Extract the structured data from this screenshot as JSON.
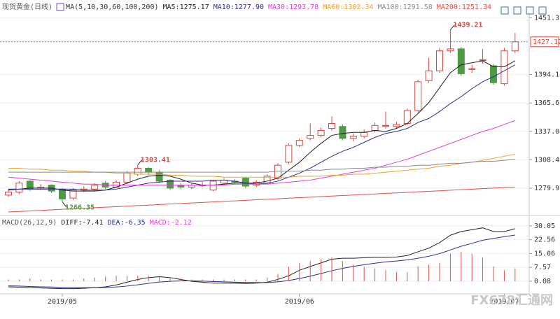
{
  "chart_data": [
    {
      "type": "candlestick",
      "title": "现货黄金(日线)",
      "indicator": "MA(5,10,30,60,100,200)",
      "categories": [
        null,
        null,
        null,
        null,
        null,
        "2019/05",
        null,
        null,
        null,
        null,
        null,
        null,
        null,
        null,
        null,
        null,
        null,
        null,
        null,
        null,
        null,
        null,
        null,
        null,
        null,
        null,
        null,
        "2019/06",
        null,
        null,
        null,
        null,
        null,
        null,
        null,
        null,
        null,
        null,
        null,
        null,
        null,
        null,
        null,
        null,
        null,
        null,
        "2019/07",
        null
      ],
      "open": [
        1273,
        1276,
        1287,
        1280,
        1283,
        1279,
        1270,
        1278,
        1279,
        1285,
        1281,
        1286,
        1294,
        1300,
        1296,
        1288,
        1283,
        1281,
        1283,
        1278,
        1285,
        1287,
        1290,
        1283,
        1285,
        1290,
        1306,
        1323,
        1330,
        1333,
        1340,
        1342,
        1330,
        1332,
        1338,
        1343,
        1342,
        1345,
        1358,
        1388,
        1398,
        1418,
        1420,
        1400,
        1409,
        1403,
        1385,
        1418
      ],
      "high": [
        1279,
        1287,
        1288,
        1284,
        1284,
        1280,
        1280,
        1282,
        1285,
        1287,
        1288,
        1297,
        1303.41,
        1301,
        1298,
        1289,
        1285,
        1285,
        1286,
        1288,
        1290,
        1289,
        1291,
        1288,
        1294,
        1305,
        1325,
        1330,
        1345,
        1341,
        1352,
        1344,
        1335,
        1339,
        1346,
        1357,
        1347,
        1360,
        1389,
        1411,
        1421,
        1439.21,
        1422,
        1404,
        1420,
        1405,
        1421,
        1436
      ],
      "low": [
        1271,
        1274,
        1277,
        1278,
        1275,
        1266.35,
        1268,
        1276,
        1277,
        1279,
        1280,
        1284,
        1292,
        1293,
        1285,
        1278,
        1279,
        1279,
        1281,
        1277,
        1284,
        1284,
        1280,
        1281,
        1284,
        1288,
        1304,
        1321,
        1328,
        1331,
        1338,
        1328,
        1327,
        1330,
        1336,
        1340,
        1340,
        1343,
        1356,
        1386,
        1396,
        1416,
        1393,
        1396,
        1405,
        1384,
        1383,
        1416
      ],
      "close": [
        1276,
        1285,
        1279,
        1281,
        1277,
        1269,
        1278,
        1279,
        1283,
        1281,
        1286,
        1295,
        1300,
        1296,
        1287,
        1280,
        1281,
        1283,
        1283,
        1287,
        1288,
        1286,
        1282,
        1286,
        1292,
        1303,
        1323,
        1328,
        1333,
        1338,
        1345,
        1330,
        1332,
        1336,
        1343,
        1343,
        1344,
        1358,
        1387,
        1398,
        1418,
        1420,
        1395,
        1400,
        1409,
        1386,
        1418,
        1427.12
      ],
      "up_color": "#d9453f",
      "down_color": "#4f9a44",
      "ylim": [
        1254.6,
        1456.5
      ],
      "yticks": [
        1279.91,
        1308.48,
        1337.04,
        1365.61,
        1394.18,
        1451.31
      ],
      "grid": true,
      "last_price": 1427.12,
      "last_price_color": "#3b8fd8",
      "annotations": [
        1439.21,
        1303.41,
        1266.35
      ],
      "watermark": "FX678汇通网",
      "series": [
        {
          "name": "MA5:1275.17",
          "color": "#222222",
          "values": [
            1278,
            1279,
            1280,
            1280,
            1280,
            1278,
            1277,
            1277,
            1277,
            1278,
            1281,
            1285,
            1289,
            1292,
            1293,
            1292,
            1289,
            1285,
            1283,
            1283,
            1284,
            1285,
            1285,
            1285,
            1287,
            1290,
            1298,
            1306,
            1316,
            1325,
            1333,
            1335,
            1336,
            1336,
            1338,
            1337,
            1340,
            1345,
            1355,
            1366,
            1381,
            1396,
            1404,
            1406,
            1408,
            1402,
            1402,
            1408
          ]
        },
        {
          "name": "MA10:1277.90",
          "color": "#2b2f8f",
          "values": [
            1279,
            1279,
            1279,
            1279,
            1279,
            1279,
            1279,
            1278,
            1278,
            1278,
            1279,
            1281,
            1283,
            1285,
            1286,
            1287,
            1287,
            1287,
            1287,
            1288,
            1288,
            1287,
            1285,
            1284,
            1285,
            1287,
            1291,
            1295,
            1300,
            1306,
            1312,
            1317,
            1321,
            1326,
            1331,
            1335,
            1337,
            1340,
            1346,
            1350,
            1357,
            1365,
            1372,
            1380,
            1387,
            1392,
            1398,
            1404
          ]
        },
        {
          "name": "MA30:1293.78",
          "color": "#e040d8",
          "values": [
            1291,
            1290,
            1289,
            1288,
            1287,
            1286,
            1285,
            1284,
            1284,
            1283,
            1283,
            1283,
            1283,
            1283,
            1283,
            1283,
            1283,
            1283,
            1283,
            1283,
            1283,
            1284,
            1284,
            1284,
            1284,
            1285,
            1286,
            1287,
            1288,
            1290,
            1292,
            1294,
            1296,
            1298,
            1300,
            1303,
            1306,
            1309,
            1313,
            1317,
            1321,
            1325,
            1329,
            1333,
            1337,
            1340,
            1344,
            1348
          ]
        },
        {
          "name": "MA60:1302.34",
          "color": "#f0a030",
          "values": [
            1300,
            1300,
            1299,
            1299,
            1298,
            1298,
            1297,
            1297,
            1296,
            1296,
            1295,
            1295,
            1294,
            1294,
            1294,
            1293,
            1293,
            1292,
            1292,
            1292,
            1291,
            1291,
            1291,
            1291,
            1291,
            1291,
            1291,
            1292,
            1292,
            1292,
            1293,
            1293,
            1294,
            1294,
            1295,
            1296,
            1297,
            1298,
            1299,
            1300,
            1302,
            1303,
            1305,
            1306,
            1308,
            1310,
            1312,
            1314
          ]
        },
        {
          "name": "MA100:1291.58",
          "color": "#8a8a8a",
          "values": [
            1296,
            1296,
            1296,
            1296,
            1296,
            1296,
            1296,
            1296,
            1296,
            1296,
            1296,
            1296,
            1296,
            1296,
            1296,
            1296,
            1296,
            1296,
            1296,
            1296,
            1296,
            1296,
            1296,
            1296,
            1296,
            1297,
            1297,
            1297,
            1298,
            1298,
            1299,
            1299,
            1300,
            1300,
            1301,
            1301,
            1302,
            1302,
            1303,
            1303,
            1304,
            1305,
            1305,
            1306,
            1307,
            1307,
            1308,
            1309
          ]
        },
        {
          "name": "MA200:1251.34",
          "color": "#e0504a",
          "values": [
            1256,
            1256.5,
            1257,
            1257.6,
            1258.1,
            1258.7,
            1259.2,
            1259.7,
            1260.3,
            1260.8,
            1261.3,
            1261.9,
            1262.4,
            1262.9,
            1263.5,
            1264,
            1264.5,
            1265.1,
            1265.6,
            1266.1,
            1266.7,
            1267.2,
            1267.7,
            1268.3,
            1268.8,
            1269.3,
            1269.9,
            1270.4,
            1270.9,
            1271.5,
            1272,
            1272.5,
            1273.1,
            1273.6,
            1274.1,
            1274.7,
            1275.2,
            1275.7,
            1276.3,
            1276.8,
            1277.3,
            1277.9,
            1278.4,
            1278.9,
            1279.5,
            1280,
            1280.5,
            1281.1
          ]
        }
      ]
    },
    {
      "type": "macd",
      "title": "MACD(26,12,9)",
      "ylim": [
        -6.8,
        34.2
      ],
      "yticks": [
        0.08,
        7.57,
        15.06,
        22.56,
        30.05
      ],
      "bar_color": "#e0504a",
      "series": [
        {
          "name": "DIFF:-7.41",
          "color": "#222222",
          "values": [
            -3,
            -3.2,
            -3.5,
            -3.6,
            -3.8,
            -4,
            -4,
            -3.8,
            -3.5,
            -3,
            -2,
            -0.5,
            1,
            2,
            2.5,
            2,
            1,
            0,
            -0.5,
            -1,
            -1,
            -1,
            -1.2,
            -1,
            -0.5,
            1,
            3,
            6,
            8,
            10,
            12,
            12.5,
            12.5,
            12.8,
            13,
            13,
            13.2,
            14,
            16,
            18,
            21,
            25,
            27,
            28,
            29,
            27,
            27,
            28.5
          ]
        },
        {
          "name": "DEA:-6.35",
          "color": "#2b2f8f",
          "values": [
            -2.5,
            -2.6,
            -2.8,
            -3,
            -3.1,
            -3.3,
            -3.4,
            -3.5,
            -3.5,
            -3.4,
            -3.1,
            -2.6,
            -1.9,
            -1.1,
            -0.4,
            0,
            0.2,
            0.2,
            0.1,
            -0.1,
            -0.3,
            -0.5,
            -0.6,
            -0.7,
            -0.7,
            -0.3,
            0.4,
            1.5,
            2.8,
            4.2,
            5.7,
            7,
            8.1,
            9,
            9.8,
            10.5,
            11,
            11.6,
            12.5,
            13.6,
            15,
            17,
            19,
            20.6,
            22.3,
            23.3,
            24.2,
            25.1
          ]
        },
        {
          "name": "MACD:-2.12",
          "color": "#e040d8",
          "kind": "bar",
          "values": [
            1,
            1,
            1.5,
            1,
            1,
            1,
            1,
            1.5,
            2,
            2.5,
            3,
            3,
            3,
            3,
            2.5,
            2,
            1.5,
            1,
            1,
            1,
            1,
            1,
            1,
            1,
            2,
            4,
            8,
            10,
            11,
            12,
            13,
            11,
            9,
            8,
            7,
            6,
            5,
            5,
            8,
            9,
            10,
            15,
            16,
            15,
            13,
            8,
            6,
            7
          ]
        }
      ]
    }
  ]
}
